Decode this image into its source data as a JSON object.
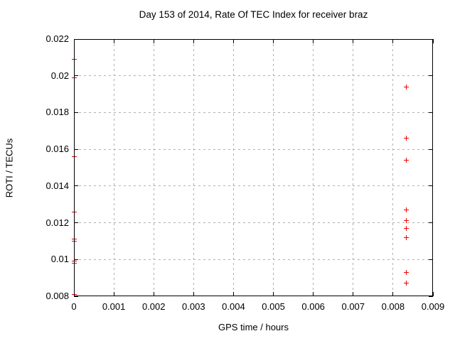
{
  "title": "Day 153 of 2014, Rate Of TEC Index for receiver braz",
  "colors": {
    "background": "#ffffff",
    "text": "#000000",
    "axis": "#000000",
    "grid": "#b0b0b0",
    "marker": "#ef0000"
  },
  "chart_data": {
    "type": "scatter",
    "title": "Day 153 of 2014, Rate Of TEC Index for receiver braz",
    "xlabel": "GPS time / hours",
    "ylabel": "ROTI / TECUs",
    "xlim": [
      0,
      0.009
    ],
    "ylim": [
      0.008,
      0.022
    ],
    "grid": true,
    "legend": "none",
    "marker_style": "plus",
    "x_ticks": [
      {
        "v": 0,
        "label": "0"
      },
      {
        "v": 0.001,
        "label": "0.001"
      },
      {
        "v": 0.002,
        "label": "0.002"
      },
      {
        "v": 0.003,
        "label": "0.003"
      },
      {
        "v": 0.004,
        "label": "0.004"
      },
      {
        "v": 0.005,
        "label": "0.005"
      },
      {
        "v": 0.006,
        "label": "0.006"
      },
      {
        "v": 0.007,
        "label": "0.007"
      },
      {
        "v": 0.008,
        "label": "0.008"
      },
      {
        "v": 0.009,
        "label": "0.009"
      }
    ],
    "y_ticks": [
      {
        "v": 0.008,
        "label": "0.008"
      },
      {
        "v": 0.01,
        "label": "0.01"
      },
      {
        "v": 0.012,
        "label": "0.012"
      },
      {
        "v": 0.014,
        "label": "0.014"
      },
      {
        "v": 0.016,
        "label": "0.016"
      },
      {
        "v": 0.018,
        "label": "0.018"
      },
      {
        "v": 0.02,
        "label": "0.02"
      },
      {
        "v": 0.022,
        "label": "0.022"
      }
    ],
    "series": [
      {
        "name": "roti",
        "points": [
          [
            0,
            0.0209
          ],
          [
            0,
            0.0199
          ],
          [
            0,
            0.0156
          ],
          [
            0,
            0.0126
          ],
          [
            0,
            0.0111
          ],
          [
            0,
            0.011
          ],
          [
            0,
            0.0099
          ],
          [
            0,
            0.0098
          ],
          [
            0,
            0.0081
          ],
          [
            0.00834,
            0.0194
          ],
          [
            0.00834,
            0.0166
          ],
          [
            0.00834,
            0.0154
          ],
          [
            0.00834,
            0.0127
          ],
          [
            0.00834,
            0.0121
          ],
          [
            0.00834,
            0.0117
          ],
          [
            0.00834,
            0.0112
          ],
          [
            0.00834,
            0.0093
          ],
          [
            0.00834,
            0.0087
          ]
        ]
      }
    ]
  }
}
